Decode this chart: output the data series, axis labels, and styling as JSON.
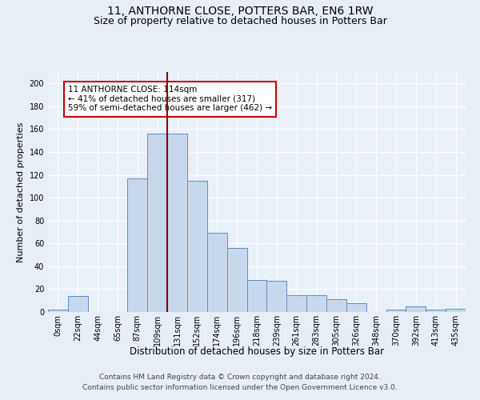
{
  "title": "11, ANTHORNE CLOSE, POTTERS BAR, EN6 1RW",
  "subtitle": "Size of property relative to detached houses in Potters Bar",
  "xlabel": "Distribution of detached houses by size in Potters Bar",
  "ylabel": "Number of detached properties",
  "bar_labels": [
    "0sqm",
    "22sqm",
    "44sqm",
    "65sqm",
    "87sqm",
    "109sqm",
    "131sqm",
    "152sqm",
    "174sqm",
    "196sqm",
    "218sqm",
    "239sqm",
    "261sqm",
    "283sqm",
    "305sqm",
    "326sqm",
    "348sqm",
    "370sqm",
    "392sqm",
    "413sqm",
    "435sqm"
  ],
  "bar_values": [
    2,
    14,
    0,
    0,
    117,
    156,
    156,
    115,
    69,
    56,
    28,
    27,
    15,
    15,
    11,
    8,
    0,
    2,
    5,
    2,
    3
  ],
  "bar_color": "#c8d8ec",
  "bar_edge_color": "#5b8fc9",
  "vline_x": 5.5,
  "vline_color": "#8b0000",
  "annotation_text": "11 ANTHORNE CLOSE: 114sqm\n← 41% of detached houses are smaller (317)\n59% of semi-detached houses are larger (462) →",
  "annotation_box_color": "#ffffff",
  "annotation_box_edge_color": "#cc0000",
  "ylim": [
    0,
    210
  ],
  "yticks": [
    0,
    20,
    40,
    60,
    80,
    100,
    120,
    140,
    160,
    180,
    200
  ],
  "footer1": "Contains HM Land Registry data © Crown copyright and database right 2024.",
  "footer2": "Contains public sector information licensed under the Open Government Licence v3.0.",
  "bg_color": "#e8eef5",
  "plot_bg_color": "#eaf0f8",
  "grid_color": "#ffffff",
  "title_fontsize": 10,
  "subtitle_fontsize": 9,
  "xlabel_fontsize": 8.5,
  "ylabel_fontsize": 8,
  "tick_fontsize": 7,
  "annotation_fontsize": 7.5,
  "footer_fontsize": 6.5
}
